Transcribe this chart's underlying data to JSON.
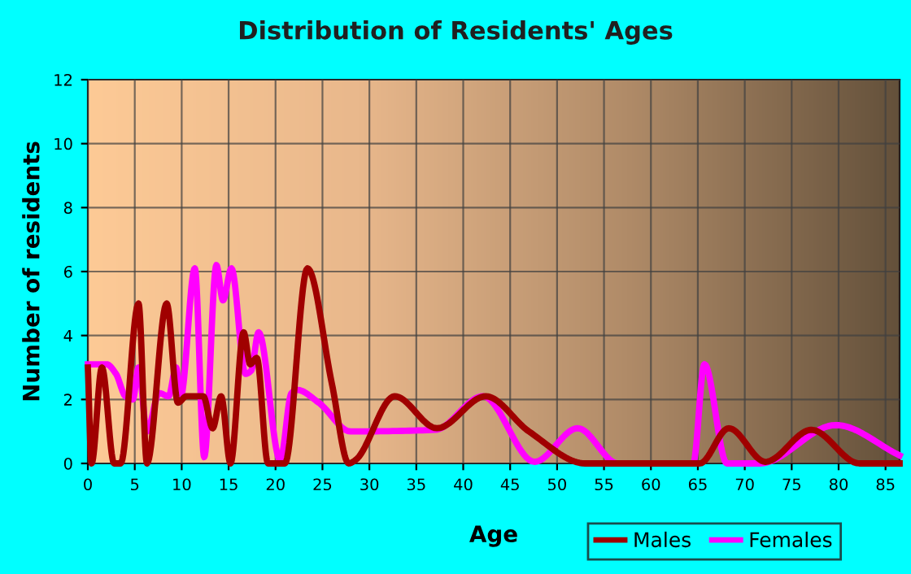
{
  "chart_data": {
    "type": "line",
    "title": "Distribution of Residents' Ages",
    "xlabel": "Age",
    "ylabel": "Number of residents",
    "xlim": [
      0,
      86.5
    ],
    "xticks": [
      0,
      5,
      10,
      15,
      20,
      25,
      30,
      35,
      40,
      45,
      50,
      55,
      60,
      65,
      70,
      75,
      80,
      85
    ],
    "ylim": [
      0,
      12
    ],
    "yticks": [
      0,
      2,
      4,
      6,
      8,
      10,
      12
    ],
    "grid": true,
    "legend": "bottom right",
    "marker": "none",
    "line_style": "solid",
    "series": [
      {
        "name": "Males",
        "color": "#a00000",
        "x": [
          0,
          0.4,
          1.5,
          2.8,
          3.5,
          5.4,
          6.3,
          8.4,
          9.6,
          10.5,
          12.3,
          13.3,
          14.2,
          15.2,
          16.6,
          17.3,
          18,
          19.2,
          21,
          23.4,
          26,
          27.8,
          28.5,
          32.7,
          37.2,
          42.4,
          47,
          53,
          65.2,
          68.3,
          72.2,
          77.1,
          82.2,
          86.5
        ],
        "values": [
          3,
          0,
          3,
          0,
          0,
          5,
          0,
          5,
          1.9,
          2.1,
          2.1,
          1.1,
          2.1,
          0,
          4.1,
          3.1,
          3.3,
          0,
          0,
          6.1,
          2.5,
          0,
          0.1,
          2.1,
          1.1,
          2.1,
          1,
          0,
          0,
          1.1,
          0.05,
          1.05,
          0,
          0
        ]
      },
      {
        "name": "Females",
        "color": "#ff00ff",
        "x": [
          0,
          2,
          3,
          4,
          4.8,
          5.4,
          6.3,
          7.6,
          8.6,
          9.4,
          9.9,
          11.4,
          12.4,
          13.7,
          14.4,
          15.3,
          16.8,
          17.4,
          18.2,
          20.5,
          21.7,
          22.3,
          24.6,
          28,
          37,
          42.1,
          47.6,
          52.2,
          56.5,
          64.5,
          65.7,
          68.1,
          71.6,
          79.7,
          86.5
        ],
        "values": [
          3.1,
          3.1,
          2.8,
          2.1,
          2,
          3,
          1,
          2.2,
          2.1,
          3,
          2.1,
          6.1,
          0.2,
          6.2,
          5.1,
          6.1,
          2.8,
          2.9,
          4.1,
          0.1,
          2.2,
          2.3,
          1.9,
          1,
          1.05,
          2.1,
          0.05,
          1.1,
          0,
          0,
          3.1,
          0,
          0,
          1.2,
          0.25
        ]
      }
    ]
  }
}
